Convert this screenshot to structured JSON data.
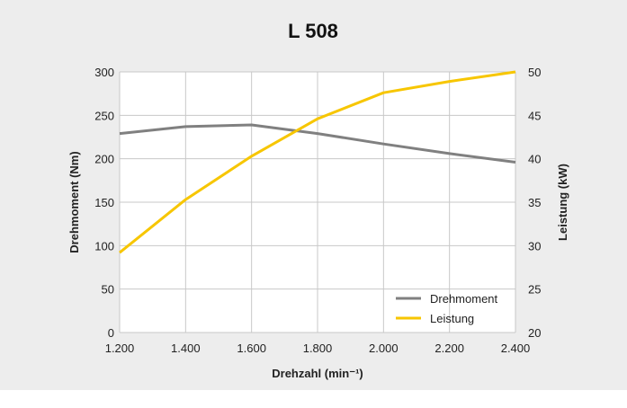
{
  "chart_data": {
    "type": "line",
    "title": "L 508",
    "xlabel": "Drehzahl (min⁻¹)",
    "ylabel_left": "Drehmoment (Nm)",
    "ylabel_right": "Leistung (kW)",
    "x_ticks": [
      "1.200",
      "1.400",
      "1.600",
      "1.800",
      "2.000",
      "2.200",
      "2.400"
    ],
    "x_values": [
      1200,
      1400,
      1600,
      1800,
      2000,
      2200,
      2400
    ],
    "xlim": [
      1200,
      2400
    ],
    "ylim_left": [
      0,
      300
    ],
    "ylim_right": [
      20,
      50
    ],
    "y_ticks_left": [
      "0",
      "50",
      "100",
      "150",
      "200",
      "250",
      "300"
    ],
    "y_ticks_right": [
      "20",
      "25",
      "30",
      "35",
      "40",
      "45",
      "50"
    ],
    "grid": true,
    "legend_position": "bottom-right",
    "series": [
      {
        "name": "Drehmoment",
        "axis": "left",
        "color": "#808080",
        "values": [
          229,
          237,
          239,
          229,
          217,
          206,
          196
        ]
      },
      {
        "name": "Leistung",
        "axis": "right",
        "color": "#f7c600",
        "values": [
          29.2,
          35.3,
          40.3,
          44.6,
          47.6,
          48.9,
          50.0
        ]
      }
    ]
  }
}
